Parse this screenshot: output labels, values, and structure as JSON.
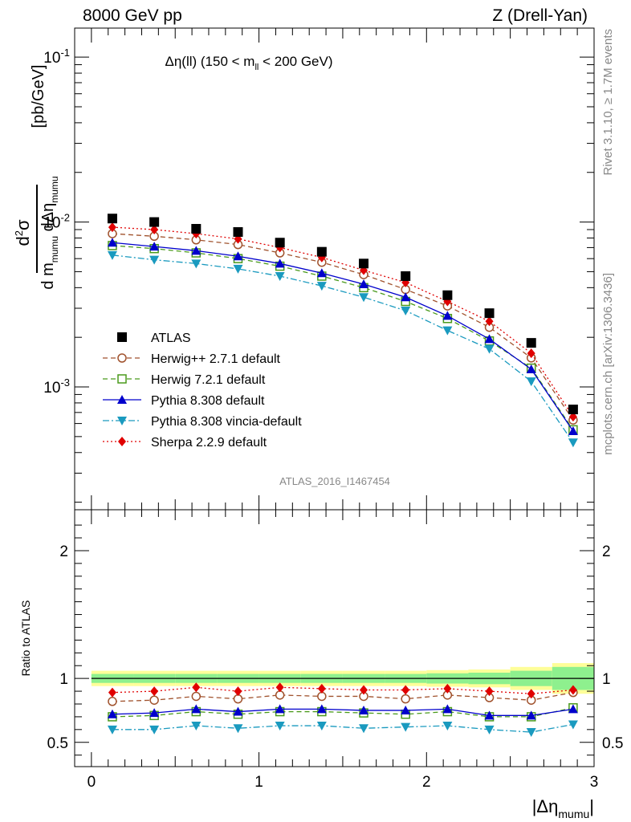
{
  "header": {
    "left": "8000 GeV pp",
    "right": "Z (Drell-Yan)"
  },
  "side_text": {
    "rivet": "Rivet 3.1.10, ≥ 1.7M events",
    "mcplots": "mcplots.cern.ch [arXiv:1306.3436]"
  },
  "chart_data": [
    {
      "type": "scatter",
      "panel": "main",
      "title": "Δη(ll) (150 < m_ll < 200 GeV)",
      "ylabel": "d²σ / d m_mumu dΔη_mumu [pb/GeV]",
      "yscale": "log",
      "ylim": [
        0.00018,
        0.15
      ],
      "xlim": [
        -0.1,
        3.0
      ],
      "xticks": [
        "0",
        "1",
        "2",
        "3"
      ],
      "yticks": [
        "10^-3",
        "10^-2",
        "10^-1"
      ],
      "watermark": "ATLAS_2016_I1467454",
      "x": [
        0.125,
        0.375,
        0.625,
        0.875,
        1.125,
        1.375,
        1.625,
        1.875,
        2.125,
        2.375,
        2.625,
        2.875
      ],
      "series": [
        {
          "name": "ATLAS",
          "color": "#000000",
          "marker": "square-filled",
          "line": "none",
          "values": [
            0.0105,
            0.01,
            0.0091,
            0.0087,
            0.0075,
            0.0066,
            0.0056,
            0.0047,
            0.0036,
            0.0028,
            0.00185,
            0.00073
          ]
        },
        {
          "name": "Herwig++ 2.7.1 default",
          "color": "#a0522d",
          "marker": "circle-open",
          "line": "dashed",
          "values": [
            0.0085,
            0.0082,
            0.0078,
            0.0073,
            0.0065,
            0.0057,
            0.0048,
            0.0039,
            0.0031,
            0.0023,
            0.0015,
            0.00063
          ]
        },
        {
          "name": "Herwig 7.2.1 default",
          "color": "#4a9a1c",
          "marker": "square-open",
          "line": "dashed",
          "values": [
            0.0072,
            0.0069,
            0.0065,
            0.006,
            0.0054,
            0.0047,
            0.004,
            0.0033,
            0.0026,
            0.0019,
            0.0013,
            0.00055
          ]
        },
        {
          "name": "Pythia 8.308 default",
          "color": "#0000cc",
          "marker": "triangle-up",
          "line": "solid",
          "values": [
            0.0075,
            0.0071,
            0.0067,
            0.0062,
            0.0056,
            0.0049,
            0.0042,
            0.0035,
            0.0027,
            0.00195,
            0.00128,
            0.00054
          ]
        },
        {
          "name": "Pythia 8.308 vincia-default",
          "color": "#1a9abf",
          "marker": "triangle-down",
          "line": "dashdot",
          "values": [
            0.0063,
            0.0059,
            0.0056,
            0.0052,
            0.0047,
            0.0041,
            0.0035,
            0.0029,
            0.0022,
            0.0017,
            0.00108,
            0.00046
          ]
        },
        {
          "name": "Sherpa 2.2.9 default",
          "color": "#e00000",
          "marker": "diamond",
          "line": "dotted",
          "values": [
            0.0093,
            0.009,
            0.0085,
            0.0079,
            0.007,
            0.0061,
            0.0051,
            0.0043,
            0.0033,
            0.0025,
            0.0016,
            0.00066
          ]
        }
      ]
    },
    {
      "type": "scatter",
      "panel": "ratio",
      "ylabel": "Ratio to ATLAS",
      "xlabel": "|Δη_mumu|",
      "ylim": [
        0.31,
        2.32
      ],
      "yticks": [
        "0.5",
        "1",
        "2"
      ],
      "xticks": [
        "0",
        "1",
        "2",
        "3"
      ],
      "x": [
        0.125,
        0.375,
        0.625,
        0.875,
        1.125,
        1.375,
        1.625,
        1.875,
        2.125,
        2.375,
        2.625,
        2.875
      ],
      "band_inner_halfwidth": [
        0.035,
        0.035,
        0.035,
        0.035,
        0.035,
        0.035,
        0.035,
        0.035,
        0.04,
        0.045,
        0.06,
        0.09
      ],
      "band_outer_halfwidth": [
        0.06,
        0.06,
        0.06,
        0.06,
        0.06,
        0.06,
        0.06,
        0.06,
        0.065,
        0.07,
        0.09,
        0.12
      ],
      "band_colors": {
        "outer": "#fefe99",
        "inner": "#8ef08e"
      },
      "series": [
        {
          "name": "Herwig++ 2.7.1 default",
          "color": "#a0522d",
          "marker": "circle-open",
          "line": "dashed",
          "values": [
            0.82,
            0.83,
            0.86,
            0.84,
            0.87,
            0.86,
            0.86,
            0.84,
            0.87,
            0.85,
            0.83,
            0.89
          ]
        },
        {
          "name": "Herwig 7.2.1 default",
          "color": "#4a9a1c",
          "marker": "square-open",
          "line": "dashed",
          "values": [
            0.7,
            0.71,
            0.74,
            0.72,
            0.74,
            0.74,
            0.73,
            0.72,
            0.74,
            0.7,
            0.7,
            0.77
          ]
        },
        {
          "name": "Pythia 8.308 default",
          "color": "#0000cc",
          "marker": "triangle-up",
          "line": "solid",
          "values": [
            0.72,
            0.73,
            0.76,
            0.74,
            0.76,
            0.76,
            0.75,
            0.75,
            0.76,
            0.71,
            0.71,
            0.76
          ]
        },
        {
          "name": "Pythia 8.308 vincia-default",
          "color": "#1a9abf",
          "marker": "triangle-down",
          "line": "dashdot",
          "values": [
            0.6,
            0.6,
            0.63,
            0.61,
            0.63,
            0.63,
            0.61,
            0.62,
            0.63,
            0.6,
            0.58,
            0.64
          ]
        },
        {
          "name": "Sherpa 2.2.9 default",
          "color": "#e00000",
          "marker": "diamond",
          "line": "dotted",
          "values": [
            0.89,
            0.9,
            0.93,
            0.9,
            0.93,
            0.92,
            0.91,
            0.91,
            0.92,
            0.9,
            0.88,
            0.91
          ]
        }
      ]
    }
  ]
}
